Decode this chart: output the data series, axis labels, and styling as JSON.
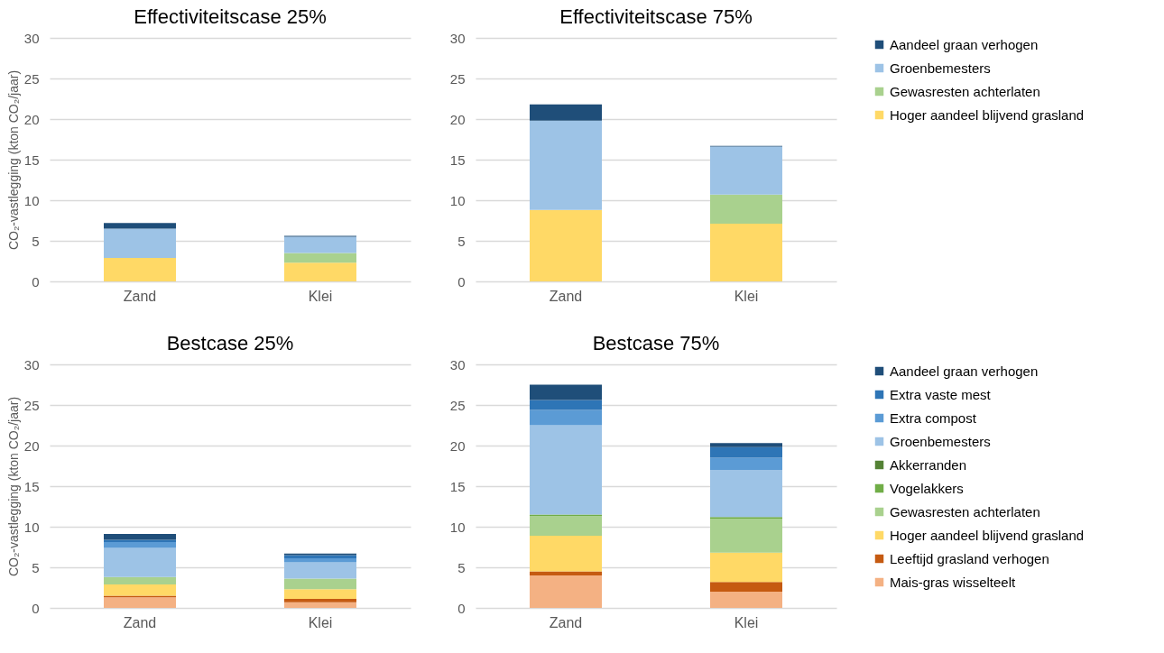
{
  "chart_data": [
    {
      "type": "bar",
      "stacked": true,
      "title": "Effectiviteitscase 25%",
      "ylabel": "CO₂-vastlegging (kton CO₂/jaar)",
      "categories": [
        "Zand",
        "Klei"
      ],
      "ylim": [
        0,
        30
      ],
      "yticks": [
        0,
        5,
        10,
        15,
        20,
        25,
        30
      ],
      "grid": "y",
      "series": [
        {
          "color": "#ffd966",
          "values": [
            2.9,
            2.3
          ]
        },
        {
          "color": "#a9d18e",
          "values": [
            0,
            1.2
          ]
        },
        {
          "color": "#9dc3e6",
          "values": [
            3.6,
            2.0
          ]
        },
        {
          "color": "#1f4e79",
          "values": [
            0.7,
            0.1
          ]
        }
      ]
    },
    {
      "type": "bar",
      "stacked": true,
      "title": "Effectiviteitscase 75%",
      "categories": [
        "Zand",
        "Klei"
      ],
      "ylim": [
        0,
        30
      ],
      "yticks": [
        0,
        5,
        10,
        15,
        20,
        25,
        30
      ],
      "grid": "y",
      "legend": "right",
      "series": [
        {
          "name": "Hoger aandeel blijvend grasland",
          "color": "#ffd966",
          "values": [
            8.8,
            7.1
          ]
        },
        {
          "name": "Gewasresten achterlaten",
          "color": "#a9d18e",
          "values": [
            0,
            3.6
          ]
        },
        {
          "name": "Groenbemesters",
          "color": "#9dc3e6",
          "values": [
            11.0,
            5.9
          ]
        },
        {
          "name": "Aandeel graan verhogen",
          "color": "#1f4e79",
          "values": [
            2.0,
            0.1
          ]
        }
      ]
    },
    {
      "type": "bar",
      "stacked": true,
      "title": "Bestcase 25%",
      "ylabel": "CO₂-vastlegging (kton CO₂/jaar)",
      "categories": [
        "Zand",
        "Klei"
      ],
      "ylim": [
        0,
        30
      ],
      "yticks": [
        0,
        5,
        10,
        15,
        20,
        25,
        30
      ],
      "grid": "y",
      "series": [
        {
          "color": "#f4b183",
          "values": [
            1.3,
            0.7
          ]
        },
        {
          "color": "#c55a11",
          "values": [
            0.2,
            0.4
          ]
        },
        {
          "color": "#ffd966",
          "values": [
            1.4,
            1.2
          ]
        },
        {
          "color": "#a9d18e",
          "values": [
            0.9,
            1.3
          ]
        },
        {
          "color": "#70ad47",
          "values": [
            0,
            0
          ]
        },
        {
          "color": "#548235",
          "values": [
            0,
            0
          ]
        },
        {
          "color": "#9dc3e6",
          "values": [
            3.6,
            2.0
          ]
        },
        {
          "color": "#5b9bd5",
          "values": [
            0.7,
            0.5
          ]
        },
        {
          "color": "#2e75b6",
          "values": [
            0.3,
            0.4
          ]
        },
        {
          "color": "#1f4e79",
          "values": [
            0.7,
            0.2
          ]
        }
      ]
    },
    {
      "type": "bar",
      "stacked": true,
      "title": "Bestcase 75%",
      "categories": [
        "Zand",
        "Klei"
      ],
      "ylim": [
        0,
        30
      ],
      "yticks": [
        0,
        5,
        10,
        15,
        20,
        25,
        30
      ],
      "grid": "y",
      "legend": "right",
      "series": [
        {
          "name": "Mais-gras wisselteelt",
          "color": "#f4b183",
          "values": [
            4.0,
            2.0
          ]
        },
        {
          "name": "Leeftijd grasland verhogen",
          "color": "#c55a11",
          "values": [
            0.5,
            1.2
          ]
        },
        {
          "name": "Hoger aandeel blijvend grasland",
          "color": "#ffd966",
          "values": [
            4.4,
            3.6
          ]
        },
        {
          "name": "Gewasresten achterlaten",
          "color": "#a9d18e",
          "values": [
            2.4,
            4.2
          ]
        },
        {
          "name": "Vogelakkers",
          "color": "#70ad47",
          "values": [
            0.2,
            0.2
          ]
        },
        {
          "name": "Akkerranden",
          "color": "#548235",
          "values": [
            0,
            0
          ]
        },
        {
          "name": "Groenbemesters",
          "color": "#9dc3e6",
          "values": [
            11.0,
            5.8
          ]
        },
        {
          "name": "Extra compost",
          "color": "#5b9bd5",
          "values": [
            1.9,
            1.5
          ]
        },
        {
          "name": "Extra vaste mest",
          "color": "#2e75b6",
          "values": [
            1.2,
            1.3
          ]
        },
        {
          "name": "Aandeel graan verhogen",
          "color": "#1f4e79",
          "values": [
            1.9,
            0.5
          ]
        }
      ]
    }
  ]
}
